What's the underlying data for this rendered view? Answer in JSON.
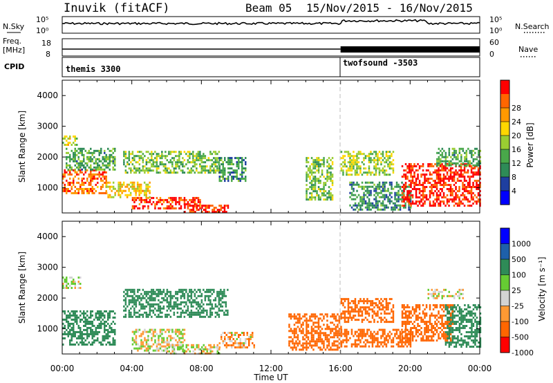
{
  "header": {
    "station": "Inuvik (fitACF)",
    "beam": "Beam 05",
    "date_range": "15/Nov/2015 - 16/Nov/2015"
  },
  "labels": {
    "nsky": "N.Sky",
    "nsearch": "N.Search",
    "freq_line1": "Freq.",
    "freq_line2": "[MHz]",
    "nave": "Nave",
    "cpid": "CPID",
    "nsky_top": "10^5",
    "nsky_bot": "10^0",
    "nsearch_top": "10^5",
    "nsearch_bot": "10^0",
    "freq_top": "18",
    "freq_bot": "8",
    "nave_top": "60",
    "nave_bot": "0"
  },
  "cpid_programs": [
    {
      "name": "themis 3300",
      "start_hour": 0
    },
    {
      "name": "twofsound -3503",
      "start_hour": 16
    }
  ],
  "colors": {
    "power": [
      "#0000ff",
      "#1f3fa0",
      "#2e8b57",
      "#49a84a",
      "#9acd32",
      "#ffd700",
      "#ff9900",
      "#ff6600",
      "#ff0000"
    ],
    "velocity": [
      "#ff0000",
      "#ff6600",
      "#ff9933",
      "#d3d3d3",
      "#66cc33",
      "#2e8b57",
      "#1e60aa",
      "#0000ff"
    ],
    "ground_scatter": "#bbbbbb"
  },
  "chart_data": [
    {
      "type": "heatmap",
      "name": "power",
      "xlabel": "",
      "ylabel": "Slant Range [km]",
      "xlim": [
        0,
        24
      ],
      "ylim": [
        180,
        4500
      ],
      "yticks": [
        1000,
        2000,
        3000,
        4000
      ],
      "colorbar_label": "Power [dB]",
      "colorbar_ticks": [
        "4",
        "8",
        "12",
        "16",
        "20",
        "24",
        "28"
      ],
      "colorbar_range": [
        0,
        32
      ],
      "regions": [
        {
          "x": [
            0.0,
            2.5
          ],
          "y": [
            800,
            1600
          ],
          "value": 26
        },
        {
          "x": [
            0.2,
            3.0
          ],
          "y": [
            1600,
            2300
          ],
          "value": 12
        },
        {
          "x": [
            0.0,
            0.8
          ],
          "y": [
            2400,
            2700
          ],
          "value": 18
        },
        {
          "x": [
            2.5,
            5.0
          ],
          "y": [
            700,
            1200
          ],
          "value": 20
        },
        {
          "x": [
            4.0,
            8.0
          ],
          "y": [
            300,
            700
          ],
          "value": 28
        },
        {
          "x": [
            7.0,
            9.5
          ],
          "y": [
            200,
            450
          ],
          "value": 30
        },
        {
          "x": [
            3.5,
            9.0
          ],
          "y": [
            1500,
            2200
          ],
          "value": 14
        },
        {
          "x": [
            9.0,
            10.5
          ],
          "y": [
            1200,
            2000
          ],
          "value": 10
        },
        {
          "x": [
            14.0,
            15.5
          ],
          "y": [
            600,
            2000
          ],
          "value": 14
        },
        {
          "x": [
            16.0,
            19.0
          ],
          "y": [
            1400,
            2200
          ],
          "value": 16
        },
        {
          "x": [
            16.5,
            20.0
          ],
          "y": [
            300,
            1200
          ],
          "value": 10
        },
        {
          "x": [
            19.5,
            24.0
          ],
          "y": [
            400,
            1800
          ],
          "value": 30
        },
        {
          "x": [
            21.5,
            24.0
          ],
          "y": [
            1700,
            2300
          ],
          "value": 12
        }
      ]
    },
    {
      "type": "heatmap",
      "name": "velocity",
      "xlabel": "Time UT",
      "ylabel": "Slant Range [km]",
      "xlim": [
        0,
        24
      ],
      "ylim": [
        180,
        4500
      ],
      "yticks": [
        1000,
        2000,
        3000,
        4000
      ],
      "xticks": [
        "00:00",
        "04:00",
        "08:00",
        "12:00",
        "16:00",
        "20:00",
        "00:00"
      ],
      "colorbar_label": "Velocity [m s^-1]",
      "colorbar_ticks": [
        "1000",
        "500",
        "100",
        "25",
        "-25",
        "-100",
        "-500",
        "-1000"
      ],
      "regions": [
        {
          "x": [
            0.0,
            3.0
          ],
          "y": [
            500,
            1600
          ],
          "value": 200
        },
        {
          "x": [
            0.0,
            1.0
          ],
          "y": [
            2300,
            2700
          ],
          "value": 0
        },
        {
          "x": [
            3.5,
            9.5
          ],
          "y": [
            1400,
            2300
          ],
          "value": 200
        },
        {
          "x": [
            4.0,
            7.0
          ],
          "y": [
            300,
            1000
          ],
          "value": 0
        },
        {
          "x": [
            6.0,
            9.0
          ],
          "y": [
            200,
            500
          ],
          "value": 0
        },
        {
          "x": [
            9.0,
            11.0
          ],
          "y": [
            400,
            900
          ],
          "value": -60
        },
        {
          "x": [
            13.0,
            16.0
          ],
          "y": [
            300,
            1500
          ],
          "value": -300
        },
        {
          "x": [
            16.0,
            19.0
          ],
          "y": [
            1200,
            2000
          ],
          "value": -300
        },
        {
          "x": [
            16.0,
            20.0
          ],
          "y": [
            400,
            1000
          ],
          "value": -200
        },
        {
          "x": [
            19.5,
            22.5
          ],
          "y": [
            600,
            1800
          ],
          "value": -300
        },
        {
          "x": [
            22.0,
            24.0
          ],
          "y": [
            400,
            1800
          ],
          "value": 200
        },
        {
          "x": [
            21.0,
            23.0
          ],
          "y": [
            2000,
            2300
          ],
          "value": 0
        }
      ]
    }
  ]
}
